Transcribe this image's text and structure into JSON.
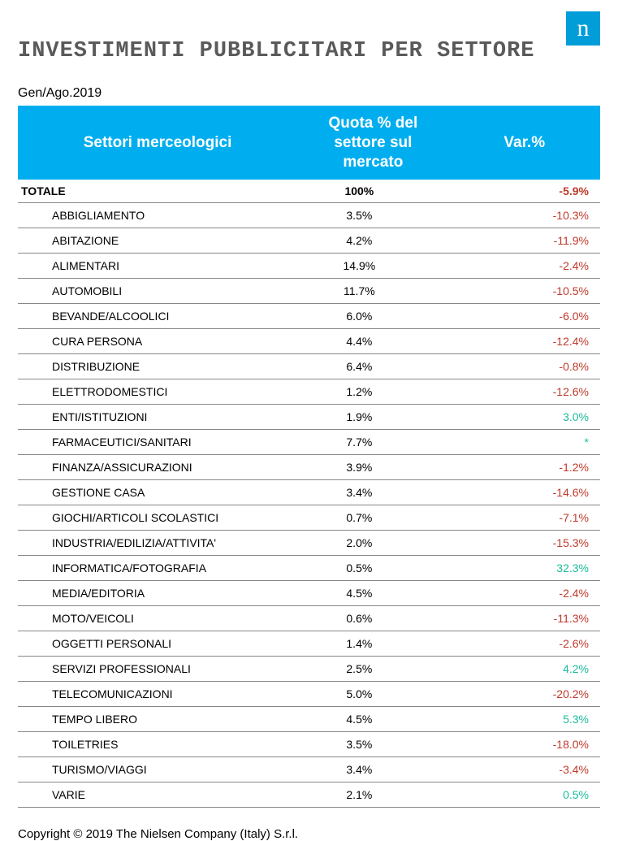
{
  "logo_letter": "n",
  "title": "INVESTIMENTI PUBBLICITARI PER SETTORE",
  "period": "Gen/Ago.2019",
  "table": {
    "columns": [
      "Settori merceologici",
      "Quota % del settore sul mercato",
      "Var.%"
    ],
    "total_row": {
      "sector": "TOTALE",
      "quota": "100%",
      "var": "-5.9%",
      "var_sign": "neg"
    },
    "rows": [
      {
        "sector": "ABBIGLIAMENTO",
        "quota": "3.5%",
        "var": "-10.3%",
        "var_sign": "neg"
      },
      {
        "sector": "ABITAZIONE",
        "quota": "4.2%",
        "var": "-11.9%",
        "var_sign": "neg"
      },
      {
        "sector": "ALIMENTARI",
        "quota": "14.9%",
        "var": "-2.4%",
        "var_sign": "neg"
      },
      {
        "sector": "AUTOMOBILI",
        "quota": "11.7%",
        "var": "-10.5%",
        "var_sign": "neg"
      },
      {
        "sector": "BEVANDE/ALCOOLICI",
        "quota": "6.0%",
        "var": "-6.0%",
        "var_sign": "neg"
      },
      {
        "sector": "CURA PERSONA",
        "quota": "4.4%",
        "var": "-12.4%",
        "var_sign": "neg"
      },
      {
        "sector": "DISTRIBUZIONE",
        "quota": "6.4%",
        "var": "-0.8%",
        "var_sign": "neg"
      },
      {
        "sector": "ELETTRODOMESTICI",
        "quota": "1.2%",
        "var": "-12.6%",
        "var_sign": "neg"
      },
      {
        "sector": "ENTI/ISTITUZIONI",
        "quota": "1.9%",
        "var": "3.0%",
        "var_sign": "pos"
      },
      {
        "sector": "FARMACEUTICI/SANITARI",
        "quota": "7.7%",
        "var": "*",
        "var_sign": "pos"
      },
      {
        "sector": "FINANZA/ASSICURAZIONI",
        "quota": "3.9%",
        "var": "-1.2%",
        "var_sign": "neg"
      },
      {
        "sector": "GESTIONE CASA",
        "quota": "3.4%",
        "var": "-14.6%",
        "var_sign": "neg"
      },
      {
        "sector": "GIOCHI/ARTICOLI SCOLASTICI",
        "quota": "0.7%",
        "var": "-7.1%",
        "var_sign": "neg"
      },
      {
        "sector": "INDUSTRIA/EDILIZIA/ATTIVITA'",
        "quota": "2.0%",
        "var": "-15.3%",
        "var_sign": "neg"
      },
      {
        "sector": "INFORMATICA/FOTOGRAFIA",
        "quota": "0.5%",
        "var": "32.3%",
        "var_sign": "pos"
      },
      {
        "sector": "MEDIA/EDITORIA",
        "quota": "4.5%",
        "var": "-2.4%",
        "var_sign": "neg"
      },
      {
        "sector": "MOTO/VEICOLI",
        "quota": "0.6%",
        "var": "-11.3%",
        "var_sign": "neg"
      },
      {
        "sector": "OGGETTI PERSONALI",
        "quota": "1.4%",
        "var": "-2.6%",
        "var_sign": "neg"
      },
      {
        "sector": "SERVIZI PROFESSIONALI",
        "quota": "2.5%",
        "var": "4.2%",
        "var_sign": "pos"
      },
      {
        "sector": "TELECOMUNICAZIONI",
        "quota": "5.0%",
        "var": "-20.2%",
        "var_sign": "neg"
      },
      {
        "sector": "TEMPO LIBERO",
        "quota": "4.5%",
        "var": "5.3%",
        "var_sign": "pos"
      },
      {
        "sector": "TOILETRIES",
        "quota": "3.5%",
        "var": "-18.0%",
        "var_sign": "neg"
      },
      {
        "sector": "TURISMO/VIAGGI",
        "quota": "3.4%",
        "var": "-3.4%",
        "var_sign": "neg"
      },
      {
        "sector": "VARIE",
        "quota": "2.1%",
        "var": "0.5%",
        "var_sign": "pos"
      }
    ]
  },
  "copyright": "Copyright © 2019 The Nielsen Company (Italy) S.r.l."
}
